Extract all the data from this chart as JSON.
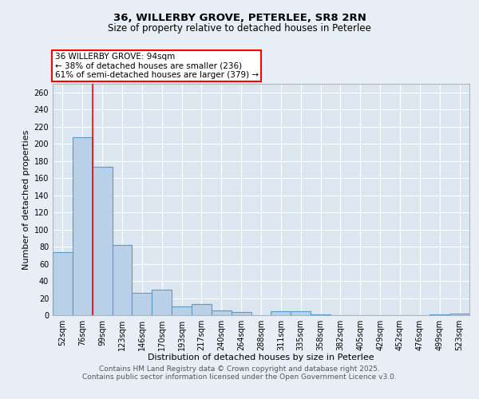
{
  "title_line1": "36, WILLERBY GROVE, PETERLEE, SR8 2RN",
  "title_line2": "Size of property relative to detached houses in Peterlee",
  "xlabel": "Distribution of detached houses by size in Peterlee",
  "ylabel": "Number of detached properties",
  "categories": [
    "52sqm",
    "76sqm",
    "99sqm",
    "123sqm",
    "146sqm",
    "170sqm",
    "193sqm",
    "217sqm",
    "240sqm",
    "264sqm",
    "288sqm",
    "311sqm",
    "335sqm",
    "358sqm",
    "382sqm",
    "405sqm",
    "429sqm",
    "452sqm",
    "476sqm",
    "499sqm",
    "523sqm"
  ],
  "values": [
    74,
    208,
    173,
    82,
    26,
    30,
    10,
    13,
    6,
    4,
    0,
    5,
    5,
    1,
    0,
    0,
    0,
    0,
    0,
    1,
    2
  ],
  "bar_color": "#b8d0e8",
  "bar_edge_color": "#5a9cc5",
  "bar_edge_width": 0.8,
  "red_line_x": 1.5,
  "annotation_text": "36 WILLERBY GROVE: 94sqm\n← 38% of detached houses are smaller (236)\n61% of semi-detached houses are larger (379) →",
  "annotation_box_color": "white",
  "annotation_box_edge_color": "red",
  "ylim": [
    0,
    270
  ],
  "yticks": [
    0,
    20,
    40,
    60,
    80,
    100,
    120,
    140,
    160,
    180,
    200,
    220,
    240,
    260
  ],
  "background_color": "#e8eef5",
  "plot_background_color": "#dce6f0",
  "grid_color": "white",
  "footer_line1": "Contains HM Land Registry data © Crown copyright and database right 2025.",
  "footer_line2": "Contains public sector information licensed under the Open Government Licence v3.0.",
  "title_fontsize": 9.5,
  "subtitle_fontsize": 8.5,
  "axis_label_fontsize": 8,
  "tick_fontsize": 7,
  "annotation_fontsize": 7.5,
  "footer_fontsize": 6.5
}
